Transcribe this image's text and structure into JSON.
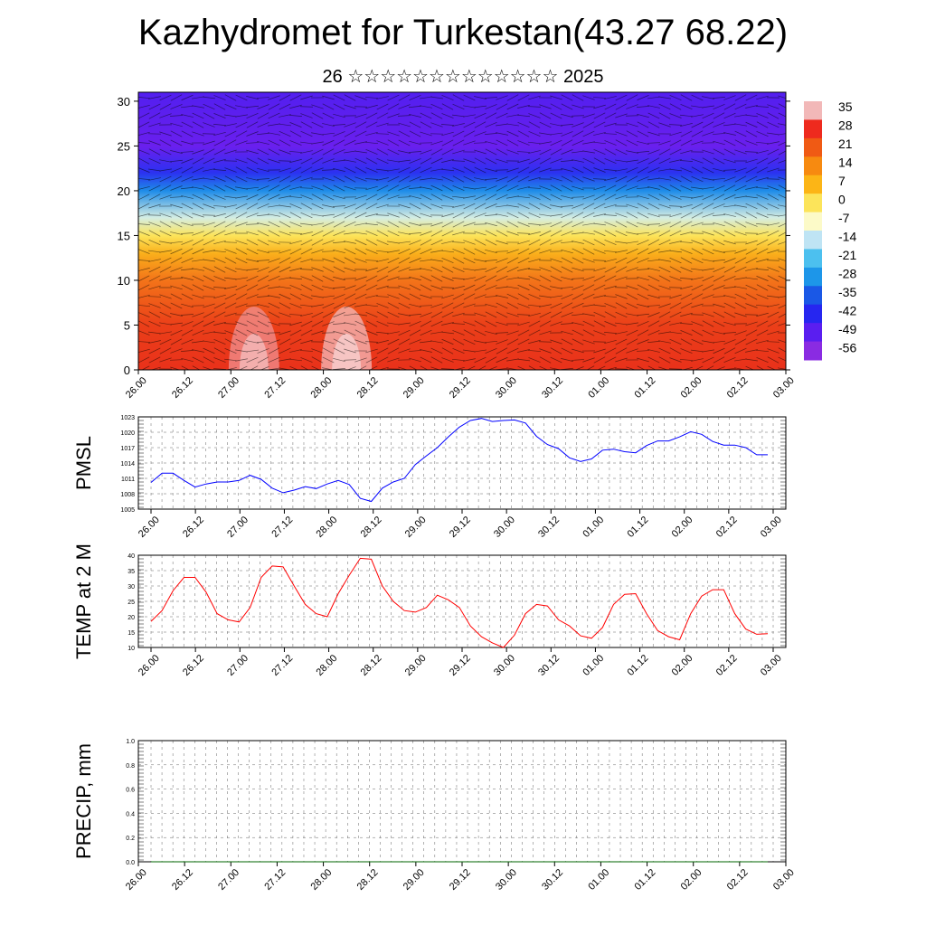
{
  "title": "Kazhydromet for Turkestan(43.27 68.22)",
  "subtitle": "26 ☆☆☆☆☆☆☆☆☆☆☆☆☆ 2025",
  "colors": {
    "pmsl_line": "#0000ff",
    "temp_line": "#ff0000",
    "precip_line": "#006400"
  },
  "chart_data": [
    {
      "type": "heatmap",
      "title": "",
      "xlabel": "",
      "ylabel": "",
      "x_ticks": [
        "26.00",
        "26.12",
        "27.00",
        "27.12",
        "28.00",
        "28.12",
        "29.00",
        "29.12",
        "30.00",
        "30.12",
        "01.00",
        "01.12",
        "02.00",
        "02.12",
        "03.00"
      ],
      "y_ticks": [
        0,
        5,
        10,
        15,
        20,
        25,
        30
      ],
      "ylim": [
        0,
        31
      ],
      "colorbar": {
        "labels": [
          "35",
          "28",
          "21",
          "14",
          "7",
          "0",
          "-7",
          "-14",
          "-21",
          "-28",
          "-35",
          "-42",
          "-49",
          "-56"
        ],
        "colors": [
          "#f2b8b8",
          "#ee2a1e",
          "#f05a14",
          "#f78a10",
          "#fcb516",
          "#fce45a",
          "#fcfac8",
          "#bfe4f4",
          "#4cc0ef",
          "#1d96e9",
          "#1a58e6",
          "#2626f0",
          "#5a1ef0",
          "#8a2be2"
        ]
      },
      "temperature_profile": [
        {
          "height": 0,
          "temp": 27
        },
        {
          "height": 5,
          "temp": 25
        },
        {
          "height": 10,
          "temp": 18
        },
        {
          "height": 13,
          "temp": 10
        },
        {
          "height": 15,
          "temp": 0
        },
        {
          "height": 17,
          "temp": -12
        },
        {
          "height": 20,
          "temp": -30
        },
        {
          "height": 22,
          "temp": -45
        },
        {
          "height": 25,
          "temp": -55
        },
        {
          "height": 31,
          "temp": -52
        }
      ],
      "surface_warm_spots": [
        {
          "time": "27.00",
          "peak_temp": 33
        },
        {
          "time": "28.00",
          "peak_temp": 35
        }
      ],
      "grid": false
    },
    {
      "type": "line",
      "ylabel": "PMSL",
      "ylim": [
        1005,
        1023
      ],
      "y_ticks": [
        1005,
        1008,
        1011,
        1014,
        1017,
        1020,
        1023
      ],
      "x_ticks": [
        "26.00",
        "26.12",
        "27.00",
        "27.12",
        "28.00",
        "28.12",
        "29.00",
        "29.12",
        "30.00",
        "30.12",
        "01.00",
        "01.12",
        "02.00",
        "02.12",
        "03.00"
      ],
      "series": [
        {
          "values": [
            1010.2,
            1012.0,
            1012.0,
            1010.6,
            1009.3,
            1009.9,
            1010.3,
            1010.3,
            1010.6,
            1011.6,
            1010.8,
            1009.1,
            1008.2,
            1008.7,
            1009.4,
            1009.0,
            1009.9,
            1010.6,
            1009.8,
            1007.1,
            1006.5,
            1009.1,
            1010.3,
            1011.0,
            1013.7,
            1015.4,
            1017.0,
            1019.1,
            1021.0,
            1022.3,
            1022.7,
            1022.1,
            1022.3,
            1022.4,
            1021.8,
            1019.2,
            1017.6,
            1016.8,
            1015.0,
            1014.3,
            1014.8,
            1016.5,
            1016.7,
            1016.2,
            1016.0,
            1017.4,
            1018.3,
            1018.3,
            1019.1,
            1020.1,
            1019.6,
            1018.2,
            1017.5,
            1017.5,
            1017.0,
            1015.6,
            1015.6
          ]
        }
      ],
      "grid": true
    },
    {
      "type": "line",
      "ylabel": "TEMP at 2 M",
      "ylim": [
        10,
        40
      ],
      "y_ticks": [
        10,
        15,
        20,
        25,
        30,
        35,
        40
      ],
      "x_ticks": [
        "26.00",
        "26.12",
        "27.00",
        "27.12",
        "28.00",
        "28.12",
        "29.00",
        "29.12",
        "30.00",
        "30.12",
        "01.00",
        "01.12",
        "02.00",
        "02.12",
        "03.00"
      ],
      "series": [
        {
          "values": [
            18.5,
            22,
            28.5,
            32.8,
            32.8,
            28,
            21,
            19,
            18.3,
            23,
            32.8,
            36.5,
            36.2,
            30,
            24,
            21,
            20,
            27.5,
            33.5,
            39,
            38.7,
            30,
            25,
            22,
            21.5,
            23,
            27,
            25.5,
            23,
            17,
            13.5,
            11.5,
            10,
            14,
            21,
            24,
            23.5,
            19,
            17,
            13.8,
            13,
            16.5,
            24,
            27.3,
            27.5,
            21,
            15.5,
            13.5,
            12.5,
            21,
            26.7,
            28.8,
            28.8,
            21,
            16,
            14.3,
            14.5
          ]
        }
      ],
      "grid": true
    },
    {
      "type": "line",
      "ylabel": "PRECIP, mm",
      "ylim": [
        0,
        1
      ],
      "y_ticks": [
        "0.0",
        "0.2",
        "0.4",
        "0.6",
        "0.8",
        "1.0"
      ],
      "x_ticks": [
        "26.00",
        "26.12",
        "27.00",
        "27.12",
        "28.00",
        "28.12",
        "29.00",
        "29.12",
        "30.00",
        "30.12",
        "01.00",
        "01.12",
        "02.00",
        "02.12",
        "03.00"
      ],
      "series": [
        {
          "values": [
            0,
            0,
            0,
            0,
            0,
            0,
            0,
            0,
            0,
            0,
            0,
            0,
            0,
            0,
            0,
            0,
            0,
            0,
            0,
            0,
            0,
            0,
            0,
            0,
            0,
            0,
            0,
            0,
            0,
            0,
            0,
            0,
            0,
            0,
            0,
            0,
            0,
            0,
            0,
            0,
            0,
            0,
            0,
            0,
            0,
            0,
            0,
            0,
            0,
            0,
            0,
            0,
            0,
            0,
            0,
            0,
            0
          ]
        }
      ],
      "grid": true
    }
  ]
}
